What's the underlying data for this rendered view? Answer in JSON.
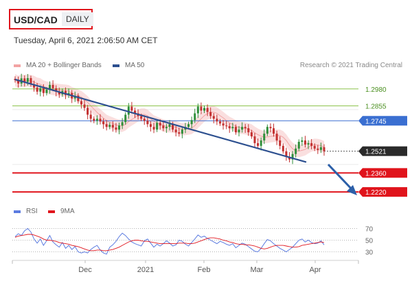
{
  "header": {
    "symbol": "USD/CAD",
    "timeframe": "DAILY",
    "datetime": "Tuesday, April 6, 2021 2:06:50 AM CET",
    "credit": "Research © 2021 Trading Central"
  },
  "colors": {
    "bollinger": "#f2a3a3",
    "ma50": "#2c4f8f",
    "support": "#e0141c",
    "resistance": "#8cc34a",
    "pivot": "#3a6fd1",
    "rsi": "#5b7be0",
    "rsi_ma": "#e0141c",
    "bull": "#2f8f3a",
    "bear": "#c33030",
    "current": "#2a2a2a"
  },
  "chart_data": [
    {
      "type": "candlestick",
      "title": "USD/CAD DAILY",
      "legend": [
        {
          "name": "MA 20 + Bollinger Bands",
          "color": "#f2a3a3"
        },
        {
          "name": "MA 50",
          "color": "#2c4f8f"
        }
      ],
      "legend_position": "top-left",
      "x_ticks": [
        "Dec",
        "2021",
        "Feb",
        "Mar",
        "Apr"
      ],
      "ylim": [
        1.217,
        1.307
      ],
      "levels": [
        {
          "value": 1.298,
          "label": "1.2980",
          "kind": "resistance"
        },
        {
          "value": 1.2855,
          "label": "1.2855",
          "kind": "resistance"
        },
        {
          "value": 1.2745,
          "label": "1.2745",
          "kind": "pivot"
        },
        {
          "value": 1.2521,
          "label": "1.2521",
          "kind": "current"
        },
        {
          "value": 1.236,
          "label": "1.2360",
          "kind": "support"
        },
        {
          "value": 1.222,
          "label": "1.2220",
          "kind": "support"
        }
      ],
      "close": [
        1.3045,
        1.302,
        1.3058,
        1.3032,
        1.306,
        1.3015,
        1.299,
        1.296,
        1.2985,
        1.295,
        1.2975,
        1.301,
        1.2985,
        1.296,
        1.294,
        1.2965,
        1.2935,
        1.295,
        1.291,
        1.293,
        1.289,
        1.2865,
        1.284,
        1.279,
        1.276,
        1.2745,
        1.276,
        1.274,
        1.272,
        1.27,
        1.2715,
        1.2695,
        1.268,
        1.271,
        1.2735,
        1.279,
        1.285,
        1.282,
        1.28,
        1.278,
        1.276,
        1.2745,
        1.272,
        1.27,
        1.268,
        1.273,
        1.271,
        1.269,
        1.27,
        1.272,
        1.268,
        1.266,
        1.265,
        1.268,
        1.27,
        1.272,
        1.275,
        1.28,
        1.285,
        1.282,
        1.284,
        1.281,
        1.278,
        1.276,
        1.274,
        1.2725,
        1.271,
        1.2705,
        1.269,
        1.27,
        1.266,
        1.268,
        1.27,
        1.269,
        1.266,
        1.263,
        1.258,
        1.256,
        1.26,
        1.265,
        1.27,
        1.269,
        1.265,
        1.26,
        1.256,
        1.252,
        1.248,
        1.246,
        1.25,
        1.254,
        1.259,
        1.26,
        1.257,
        1.258,
        1.256,
        1.254,
        1.253,
        1.255,
        1.2521
      ],
      "ma50": [
        1.305,
        1.244
      ],
      "rsi": {
        "legend": [
          {
            "name": "RSI",
            "color": "#5b7be0"
          },
          {
            "name": "9MA",
            "color": "#e0141c"
          }
        ],
        "levels": [
          70,
          50,
          30
        ],
        "values": [
          56,
          61,
          58,
          66,
          70,
          64,
          52,
          45,
          52,
          41,
          49,
          58,
          47,
          42,
          38,
          46,
          36,
          41,
          34,
          39,
          30,
          28,
          30,
          28,
          34,
          38,
          41,
          33,
          28,
          26,
          38,
          42,
          48,
          56,
          62,
          58,
          52,
          47,
          44,
          42,
          40,
          49,
          52,
          45,
          38,
          43,
          40,
          44,
          49,
          45,
          40,
          42,
          50,
          48,
          43,
          40,
          46,
          52,
          59,
          55,
          57,
          53,
          50,
          47,
          44,
          48,
          46,
          43,
          41,
          44,
          37,
          41,
          45,
          43,
          39,
          35,
          31,
          30,
          36,
          44,
          51,
          49,
          44,
          40,
          36,
          33,
          30,
          34,
          38,
          44,
          50,
          52,
          47,
          50,
          46,
          44,
          45,
          49,
          42
        ],
        "ma": [
          55,
          57,
          58,
          59,
          60,
          60,
          59,
          57,
          55,
          52,
          50,
          50,
          49,
          48,
          46,
          45,
          44,
          43,
          41,
          40,
          39,
          37,
          35,
          33,
          32,
          32,
          33,
          33,
          32,
          32,
          33,
          34,
          36,
          38,
          41,
          44,
          47,
          49,
          50,
          50,
          49,
          48,
          48,
          47,
          46,
          45,
          44,
          44,
          44,
          44,
          44,
          44,
          45,
          45,
          45,
          44,
          44,
          45,
          47,
          49,
          51,
          53,
          54,
          54,
          53,
          52,
          50,
          49,
          47,
          46,
          44,
          43,
          43,
          42,
          42,
          41,
          40,
          38,
          36,
          35,
          36,
          38,
          40,
          41,
          41,
          41,
          40,
          39,
          38,
          38,
          39,
          41,
          42,
          43,
          44,
          45,
          46,
          47,
          46
        ]
      }
    }
  ]
}
